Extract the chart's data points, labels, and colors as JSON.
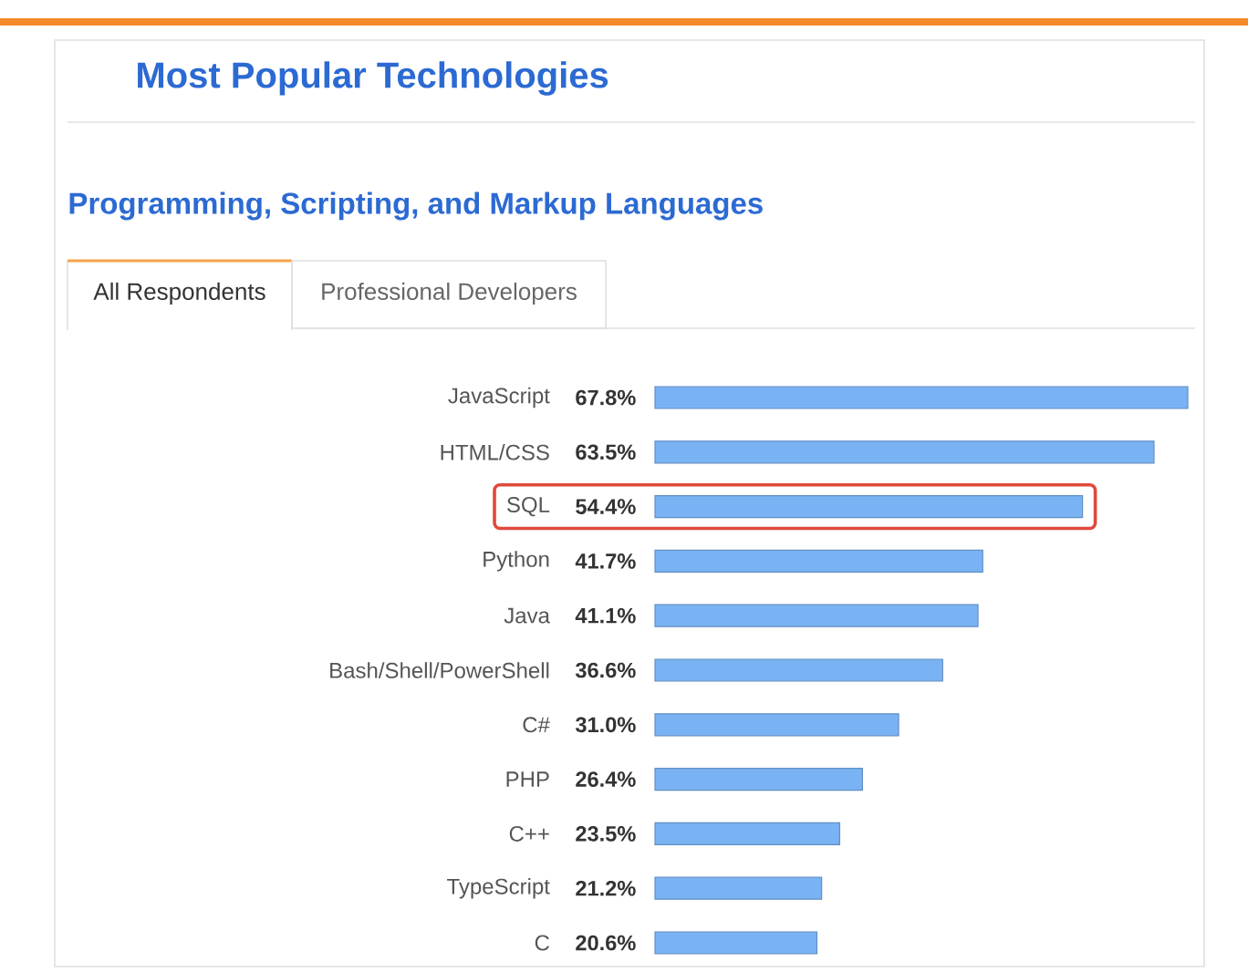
{
  "chart_data": {
    "type": "bar",
    "orientation": "horizontal",
    "title": "Most Popular Technologies",
    "subtitle": "Programming, Scripting, and Markup Languages",
    "annotations": [
      "All Respondents",
      "Professional Developers"
    ],
    "categories": [
      "JavaScript",
      "HTML/CSS",
      "SQL",
      "Python",
      "Java",
      "Bash/Shell/PowerShell",
      "C#",
      "PHP",
      "C++",
      "TypeScript",
      "C"
    ],
    "values": [
      67.8,
      63.5,
      54.4,
      41.7,
      41.1,
      36.6,
      31.0,
      26.4,
      23.5,
      21.2,
      20.6
    ],
    "value_labels": [
      "67.8%",
      "63.5%",
      "54.4%",
      "41.7%",
      "41.1%",
      "36.6%",
      "31.0%",
      "26.4%",
      "23.5%",
      "21.2%",
      "20.6%"
    ],
    "color": "#7ab3f4",
    "tick_labels": "y"
  }
}
